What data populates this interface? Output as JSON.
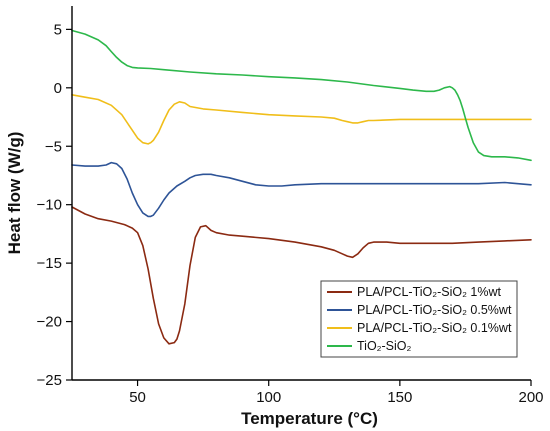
{
  "chart_data": {
    "type": "line",
    "xlabel": "Temperature (°C)",
    "ylabel": "Heat flow (W/g)",
    "xlim": [
      25,
      200
    ],
    "ylim": [
      -25,
      7
    ],
    "xticks": [
      50,
      100,
      150,
      200
    ],
    "yticks": [
      5,
      0,
      -5,
      -10,
      -15,
      -20,
      -25
    ],
    "grid": false,
    "legend_position": "bottom-right",
    "series": [
      {
        "name": "PLA/PCL-TiO₂-SiO₂ 1%wt",
        "color": "#8B2A12",
        "x": [
          25,
          30,
          35,
          40,
          45,
          48,
          50,
          52,
          54,
          56,
          58,
          60,
          62,
          64,
          65,
          66,
          68,
          70,
          72,
          74,
          76,
          78,
          80,
          85,
          90,
          100,
          110,
          120,
          125,
          128,
          130,
          132,
          134,
          136,
          138,
          140,
          145,
          150,
          160,
          170,
          180,
          190,
          200
        ],
        "y": [
          -10.2,
          -10.8,
          -11.2,
          -11.4,
          -11.7,
          -12.0,
          -12.4,
          -13.5,
          -15.5,
          -18.0,
          -20.2,
          -21.4,
          -21.9,
          -21.8,
          -21.5,
          -20.8,
          -18.5,
          -15.2,
          -12.8,
          -11.9,
          -11.8,
          -12.2,
          -12.4,
          -12.6,
          -12.7,
          -12.9,
          -13.2,
          -13.6,
          -13.9,
          -14.2,
          -14.4,
          -14.5,
          -14.2,
          -13.7,
          -13.3,
          -13.2,
          -13.2,
          -13.3,
          -13.3,
          -13.3,
          -13.2,
          -13.1,
          -13.0
        ]
      },
      {
        "name": "PLA/PCL-TiO₂-SiO₂ 0.5%wt",
        "color": "#2E5497",
        "x": [
          25,
          30,
          35,
          38,
          40,
          42,
          44,
          46,
          48,
          50,
          52,
          54,
          55,
          56,
          58,
          60,
          62,
          65,
          68,
          70,
          72,
          75,
          78,
          80,
          85,
          90,
          95,
          100,
          105,
          110,
          120,
          130,
          140,
          150,
          160,
          170,
          180,
          190,
          200
        ],
        "y": [
          -6.6,
          -6.7,
          -6.7,
          -6.6,
          -6.4,
          -6.5,
          -6.9,
          -7.8,
          -9.0,
          -10.0,
          -10.7,
          -11.0,
          -11.0,
          -10.9,
          -10.3,
          -9.6,
          -9.0,
          -8.4,
          -8.0,
          -7.7,
          -7.5,
          -7.4,
          -7.4,
          -7.5,
          -7.7,
          -8.0,
          -8.3,
          -8.4,
          -8.4,
          -8.3,
          -8.2,
          -8.2,
          -8.2,
          -8.2,
          -8.2,
          -8.2,
          -8.2,
          -8.1,
          -8.3
        ]
      },
      {
        "name": "PLA/PCL-TiO₂-SiO₂ 0.1%wt",
        "color": "#F0BE1A",
        "x": [
          25,
          30,
          35,
          40,
          44,
          47,
          50,
          52,
          54,
          55,
          56,
          58,
          60,
          62,
          64,
          66,
          68,
          70,
          75,
          80,
          90,
          100,
          110,
          120,
          125,
          128,
          130,
          132,
          134,
          136,
          138,
          140,
          150,
          160,
          170,
          180,
          190,
          200
        ],
        "y": [
          -0.6,
          -0.8,
          -1.0,
          -1.5,
          -2.3,
          -3.3,
          -4.3,
          -4.7,
          -4.8,
          -4.7,
          -4.5,
          -3.8,
          -2.8,
          -1.9,
          -1.4,
          -1.2,
          -1.3,
          -1.6,
          -1.8,
          -1.9,
          -2.1,
          -2.3,
          -2.4,
          -2.5,
          -2.6,
          -2.8,
          -2.9,
          -3.0,
          -3.0,
          -2.9,
          -2.8,
          -2.8,
          -2.7,
          -2.7,
          -2.7,
          -2.7,
          -2.7,
          -2.7
        ]
      },
      {
        "name": "TiO₂-SiO₂",
        "color": "#2DB84B",
        "x": [
          25,
          30,
          35,
          38,
          40,
          42,
          44,
          46,
          48,
          50,
          55,
          60,
          70,
          80,
          90,
          100,
          110,
          120,
          130,
          140,
          150,
          155,
          160,
          163,
          165,
          167,
          169,
          170,
          171,
          172,
          173,
          174,
          175,
          176,
          178,
          180,
          182,
          185,
          190,
          195,
          200
        ],
        "y": [
          4.9,
          4.6,
          4.1,
          3.6,
          3.1,
          2.6,
          2.2,
          1.9,
          1.75,
          1.7,
          1.65,
          1.55,
          1.35,
          1.2,
          1.1,
          0.95,
          0.85,
          0.7,
          0.5,
          0.2,
          -0.05,
          -0.2,
          -0.3,
          -0.3,
          -0.2,
          0.0,
          0.1,
          0.0,
          -0.2,
          -0.6,
          -1.1,
          -1.8,
          -2.6,
          -3.4,
          -4.7,
          -5.5,
          -5.8,
          -5.9,
          -5.9,
          -6.0,
          -6.2
        ]
      }
    ]
  }
}
